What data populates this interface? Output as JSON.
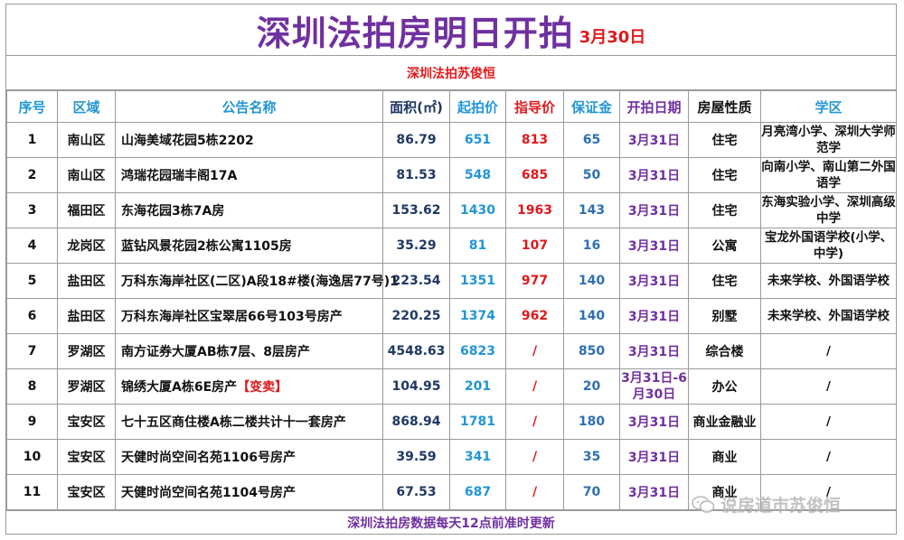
{
  "title": "深圳法拍房明日开拍",
  "title_date": "3月30日",
  "subtitle": "深圳法拍苏俊恒",
  "headers": [
    "序号",
    "区域",
    "公告名称",
    "面积(㎡)",
    "起拍价",
    "指导价",
    "保证金",
    "开拍日期",
    "房屋性质",
    "学区"
  ],
  "rows": [
    {
      "no": "1",
      "district": "南山区",
      "name": "山海美域花园5栋2202",
      "tag": "",
      "area": "86.79",
      "start": "651",
      "guide": "813",
      "deposit": "65",
      "date": "3月31日",
      "type": "住宅",
      "school": "月亮湾小学、深圳大学师范学"
    },
    {
      "no": "2",
      "district": "南山区",
      "name": "鸿瑞花园瑞丰阁17A",
      "tag": "",
      "area": "81.53",
      "start": "548",
      "guide": "685",
      "deposit": "50",
      "date": "3月31日",
      "type": "住宅",
      "school": "向南小学、南山第二外国语学"
    },
    {
      "no": "3",
      "district": "福田区",
      "name": "东海花园3栋7A房",
      "tag": "",
      "area": "153.62",
      "start": "1430",
      "guide": "1963",
      "deposit": "143",
      "date": "3月31日",
      "type": "住宅",
      "school": "东海实验小学、深圳高级中学"
    },
    {
      "no": "4",
      "district": "龙岗区",
      "name": "蓝钻风景花园2栋公寓1105房",
      "tag": "",
      "area": "35.29",
      "start": "81",
      "guide": "107",
      "deposit": "16",
      "date": "3月31日",
      "type": "公寓",
      "school": "宝龙外国语学校(小学、中学)"
    },
    {
      "no": "5",
      "district": "盐田区",
      "name": "万科东海岸社区(二区)A段18#楼(海逸居77号)1",
      "tag": "",
      "area": "223.54",
      "start": "1351",
      "guide": "977",
      "deposit": "140",
      "date": "3月31日",
      "type": "住宅",
      "school": "未来学校、外国语学校"
    },
    {
      "no": "6",
      "district": "盐田区",
      "name": "万科东海岸社区宝翠居66号103号房产",
      "tag": "",
      "area": "220.25",
      "start": "1374",
      "guide": "962",
      "deposit": "140",
      "date": "3月31日",
      "type": "别墅",
      "school": "未来学校、外国语学校"
    },
    {
      "no": "7",
      "district": "罗湖区",
      "name": "南方证券大厦AB栋7层、8层房产",
      "tag": "",
      "area": "4548.63",
      "start": "6823",
      "guide": "/",
      "deposit": "850",
      "date": "3月31日",
      "type": "综合楼",
      "school": "/"
    },
    {
      "no": "8",
      "district": "罗湖区",
      "name": "锦绣大厦A栋6E房产",
      "tag": "【变卖】",
      "area": "104.95",
      "start": "201",
      "guide": "/",
      "deposit": "20",
      "date": "3月31日-6月30日",
      "type": "办公",
      "school": "/"
    },
    {
      "no": "9",
      "district": "宝安区",
      "name": "七十五区商住楼A栋二楼共计十一套房产",
      "tag": "",
      "area": "868.94",
      "start": "1781",
      "guide": "/",
      "deposit": "180",
      "date": "3月31日",
      "type": "商业金融业",
      "school": "/"
    },
    {
      "no": "10",
      "district": "宝安区",
      "name": "天健时尚空间名苑1106号房产",
      "tag": "",
      "area": "39.59",
      "start": "341",
      "guide": "/",
      "deposit": "35",
      "date": "3月31日",
      "type": "商业",
      "school": "/"
    },
    {
      "no": "11",
      "district": "宝安区",
      "name": "天健时尚空间名苑1104号房产",
      "tag": "",
      "area": "67.53",
      "start": "687",
      "guide": "/",
      "deposit": "70",
      "date": "3月31日",
      "type": "商业",
      "school": "/"
    }
  ],
  "footer": "深圳法拍房数据每天12点前准时更新",
  "watermark": "说房道市苏俊恒",
  "watermark_icon": "wechat-icon",
  "colors": {
    "title": "#7030a0",
    "red": "#e0191b",
    "blue": "#2196d6",
    "dark_blue": "#1f3864"
  }
}
